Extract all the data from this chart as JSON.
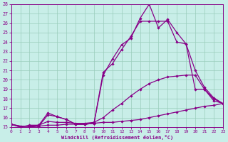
{
  "xlabel": "Windchill (Refroidissement éolien,°C)",
  "bg_color": "#c8eee8",
  "line_color": "#880088",
  "grid_color": "#99ccbb",
  "xlim": [
    0,
    23
  ],
  "ylim": [
    15,
    28
  ],
  "xticks": [
    0,
    1,
    2,
    3,
    4,
    5,
    6,
    7,
    8,
    9,
    10,
    11,
    12,
    13,
    14,
    15,
    16,
    17,
    18,
    19,
    20,
    21,
    22,
    23
  ],
  "yticks": [
    15,
    16,
    17,
    18,
    19,
    20,
    21,
    22,
    23,
    24,
    25,
    26,
    27,
    28
  ],
  "lines": [
    {
      "x": [
        0,
        1,
        2,
        3,
        4,
        5,
        6,
        7,
        8,
        9,
        10,
        11,
        12,
        13,
        14,
        15,
        16,
        17,
        18,
        19,
        20,
        21,
        22,
        23
      ],
      "y": [
        15.3,
        15.1,
        15.1,
        15.1,
        15.2,
        15.2,
        15.3,
        15.3,
        15.3,
        15.4,
        15.5,
        15.5,
        15.6,
        15.7,
        15.8,
        16.0,
        16.2,
        16.4,
        16.6,
        16.8,
        17.0,
        17.2,
        17.3,
        17.5
      ]
    },
    {
      "x": [
        0,
        1,
        2,
        3,
        4,
        5,
        6,
        7,
        8,
        9,
        10,
        11,
        12,
        13,
        14,
        15,
        16,
        17,
        18,
        19,
        20,
        21,
        22,
        23
      ],
      "y": [
        15.3,
        15.1,
        15.1,
        15.2,
        15.6,
        15.5,
        15.5,
        15.4,
        15.4,
        15.5,
        16.0,
        16.8,
        17.5,
        18.3,
        19.0,
        19.6,
        20.0,
        20.3,
        20.4,
        20.5,
        20.5,
        19.0,
        18.0,
        17.5
      ]
    },
    {
      "x": [
        0,
        1,
        2,
        3,
        4,
        5,
        6,
        7,
        8,
        9,
        10,
        11,
        12,
        13,
        14,
        15,
        16,
        17,
        18,
        19,
        20,
        21,
        22,
        23
      ],
      "y": [
        15.3,
        15.0,
        15.0,
        15.1,
        16.3,
        16.1,
        15.8,
        15.3,
        15.3,
        15.4,
        20.5,
        22.2,
        23.7,
        24.4,
        26.5,
        28.0,
        25.5,
        26.4,
        25.0,
        23.8,
        19.0,
        19.0,
        17.8,
        17.5
      ]
    },
    {
      "x": [
        0,
        1,
        2,
        3,
        4,
        5,
        6,
        7,
        8,
        9,
        10,
        11,
        12,
        13,
        14,
        15,
        16,
        17,
        18,
        19,
        20,
        21,
        22,
        23
      ],
      "y": [
        15.3,
        15.0,
        15.2,
        15.2,
        16.5,
        16.1,
        15.8,
        15.3,
        15.3,
        15.4,
        20.8,
        21.7,
        23.2,
        24.6,
        26.2,
        26.2,
        26.2,
        26.2,
        24.0,
        23.8,
        21.0,
        19.2,
        18.1,
        17.5
      ]
    }
  ]
}
